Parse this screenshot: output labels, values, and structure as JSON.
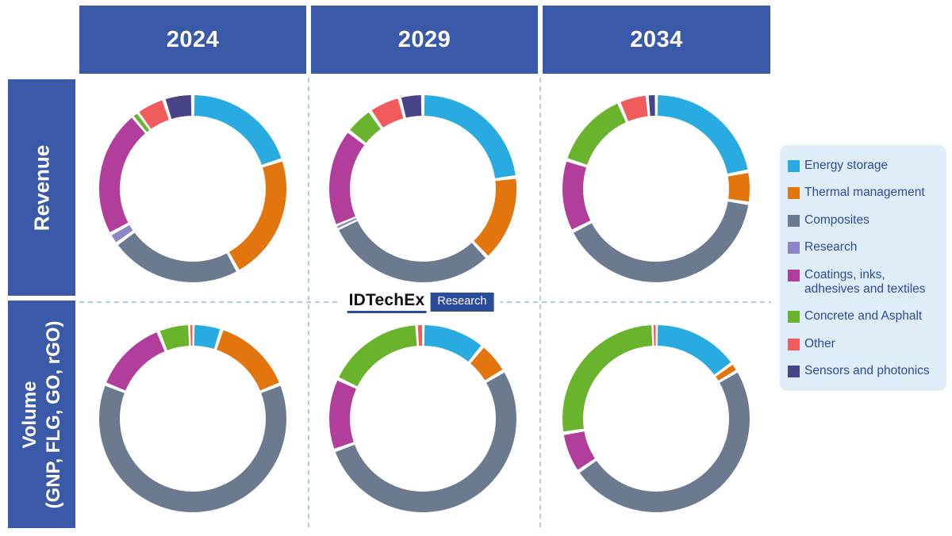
{
  "columns": [
    "2024",
    "2029",
    "2034"
  ],
  "rows": {
    "revenue": {
      "label": "Revenue"
    },
    "volume": {
      "label_line1": "Volume",
      "label_line2": "(GNP, FLG, GO, rGO)"
    }
  },
  "logo": {
    "brand": "IDTechEx",
    "badge": "Research"
  },
  "colors": {
    "header_bg": "#3A59A8",
    "legend_bg": "#DFEDF9",
    "legend_text": "#2B4B9B",
    "grid_dash": "#A9CDEB",
    "badge_bg": "#2B4B9B"
  },
  "legend": {
    "items": [
      {
        "label": "Energy storage",
        "color": "#29ABE2"
      },
      {
        "label": "Thermal management",
        "color": "#E2750E"
      },
      {
        "label": "Composites",
        "color": "#6C7A90"
      },
      {
        "label": "Research",
        "color": "#8C86C6"
      },
      {
        "label": "Coatings, inks,\nadhesives and textiles",
        "color": "#B13E9B"
      },
      {
        "label": "Concrete and Asphalt",
        "color": "#6AB32D"
      },
      {
        "label": "Other",
        "color": "#F05B5C"
      },
      {
        "label": "Sensors and photonics",
        "color": "#474587"
      }
    ]
  },
  "chart_data": {
    "type": "pie",
    "subtype": "donut-grid",
    "unit": "percent share of ring (estimated from arc angles)",
    "grid": {
      "rows": [
        "Revenue",
        "Volume (GNP, FLG, GO, rGO)"
      ],
      "columns": [
        "2024",
        "2029",
        "2034"
      ]
    },
    "categories": [
      "Energy storage",
      "Thermal management",
      "Composites",
      "Research",
      "Coatings, inks, adhesives and textiles",
      "Concrete and Asphalt",
      "Other",
      "Sensors and photonics"
    ],
    "colors": [
      "#29ABE2",
      "#E2750E",
      "#6C7A90",
      "#8C86C6",
      "#B13E9B",
      "#6AB32D",
      "#F05B5C",
      "#474587"
    ],
    "charts": [
      {
        "row": "Revenue",
        "column": "2024",
        "values": [
          20,
          22,
          23,
          2,
          22,
          1,
          5,
          5
        ]
      },
      {
        "row": "Revenue",
        "column": "2029",
        "values": [
          23,
          15,
          30,
          0.5,
          17,
          5,
          5.5,
          4
        ]
      },
      {
        "row": "Revenue",
        "column": "2034",
        "values": [
          22,
          5.5,
          40,
          0,
          12.5,
          13.5,
          5,
          1.5
        ]
      },
      {
        "row": "Volume",
        "column": "2024",
        "values": [
          5,
          14,
          62,
          0,
          13,
          5.5,
          0.5,
          0
        ]
      },
      {
        "row": "Volume",
        "column": "2029",
        "values": [
          11,
          5.5,
          53,
          0,
          12.5,
          17,
          1,
          0
        ]
      },
      {
        "row": "Volume",
        "column": "2034",
        "values": [
          15,
          1.5,
          49,
          0,
          7,
          27,
          0.5,
          0
        ]
      }
    ]
  }
}
